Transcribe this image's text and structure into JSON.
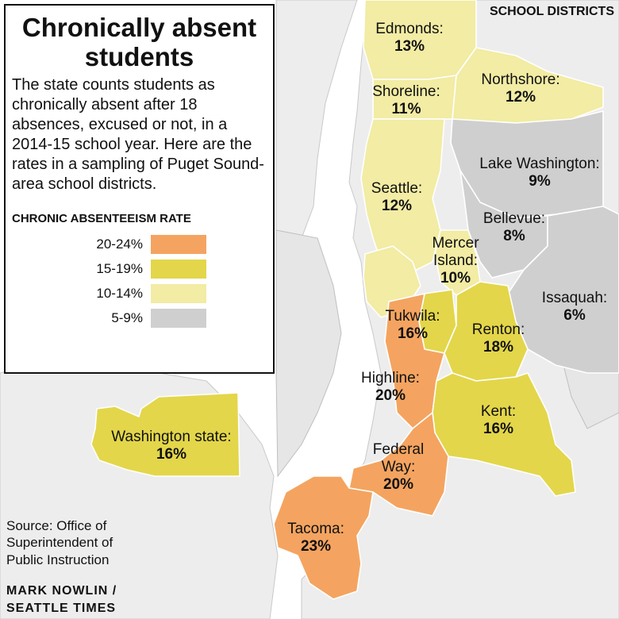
{
  "title": "Chronically absent students",
  "description": "The state counts students as chronically absent after 18 absences, excused or not, in a 2014-15 school year. Here are the rates in a sampling of Puget Sound-area school districts.",
  "map_label": "SCHOOL DISTRICTS",
  "legend": {
    "title": "CHRONIC ABSENTEEISM RATE",
    "items": [
      {
        "label": "20-24%",
        "color": "#f4a460"
      },
      {
        "label": "15-19%",
        "color": "#e3d64a"
      },
      {
        "label": "10-14%",
        "color": "#f2eca4"
      },
      {
        "label": "5-9%",
        "color": "#cfcfcf"
      }
    ]
  },
  "districts": [
    {
      "name": "Edmonds:",
      "rate": "13%",
      "value": 13
    },
    {
      "name": "Northshore:",
      "rate": "12%",
      "value": 12
    },
    {
      "name": "Shoreline:",
      "rate": "11%",
      "value": 11
    },
    {
      "name": "Lake Washington:",
      "rate": "9%",
      "value": 9
    },
    {
      "name": "Seattle:",
      "rate": "12%",
      "value": 12
    },
    {
      "name": "Bellevue:",
      "rate": "8%",
      "value": 8
    },
    {
      "name": "Mercer Island:",
      "rate": "10%",
      "value": 10
    },
    {
      "name": "Issaquah:",
      "rate": "6%",
      "value": 6
    },
    {
      "name": "Tukwila:",
      "rate": "16%",
      "value": 16
    },
    {
      "name": "Renton:",
      "rate": "18%",
      "value": 18
    },
    {
      "name": "Highline:",
      "rate": "20%",
      "value": 20
    },
    {
      "name": "Kent:",
      "rate": "16%",
      "value": 16
    },
    {
      "name": "Federal Way:",
      "rate": "20%",
      "value": 20
    },
    {
      "name": "Tacoma:",
      "rate": "23%",
      "value": 23
    }
  ],
  "state": {
    "name": "Washington state:",
    "rate": "16%",
    "value": 16
  },
  "source": "Source: Office of Superintendent of Public Instruction",
  "credit": "MARK NOWLIN / SEATTLE TIMES"
}
